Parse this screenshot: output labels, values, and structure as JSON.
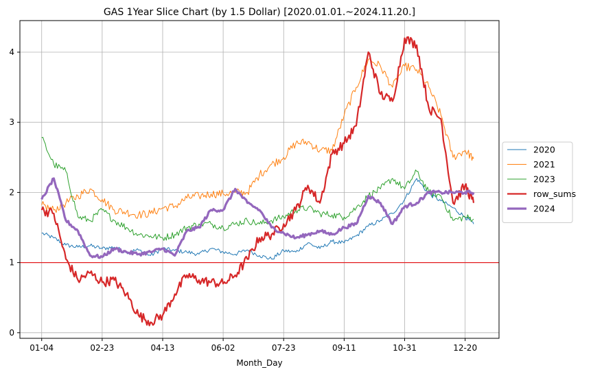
{
  "chart_data": {
    "type": "line",
    "title": "GAS 1Year Slice Chart (by 1.5 Dollar) [2020.01.01.~2024.11.20.]",
    "xlabel": "Month_Day",
    "ylabel": "",
    "x_ticks": [
      {
        "pos": 0,
        "label": "01-04"
      },
      {
        "pos": 50,
        "label": "02-23"
      },
      {
        "pos": 100,
        "label": "04-13"
      },
      {
        "pos": 150,
        "label": "06-02"
      },
      {
        "pos": 200,
        "label": "07-23"
      },
      {
        "pos": 250,
        "label": "09-11"
      },
      {
        "pos": 300,
        "label": "10-31"
      },
      {
        "pos": 350,
        "label": "12-20"
      }
    ],
    "y_ticks": [
      0,
      1,
      2,
      3,
      4
    ],
    "xlim": [
      -18,
      378
    ],
    "ylim": [
      -0.08,
      4.45
    ],
    "grid": true,
    "legend_position": "center-right",
    "reference_line": {
      "y": 1.0,
      "color": "#e31a1c"
    },
    "series": [
      {
        "name": "2020",
        "color": "#1f77b4",
        "width": 1,
        "x": [
          0,
          10,
          20,
          30,
          40,
          50,
          60,
          70,
          80,
          90,
          100,
          110,
          120,
          130,
          140,
          150,
          160,
          170,
          180,
          190,
          200,
          210,
          220,
          230,
          240,
          250,
          260,
          270,
          280,
          290,
          300,
          310,
          320,
          330,
          340,
          350,
          357
        ],
        "values": [
          1.42,
          1.35,
          1.25,
          1.22,
          1.24,
          1.2,
          1.22,
          1.15,
          1.18,
          1.1,
          1.2,
          1.17,
          1.15,
          1.12,
          1.2,
          1.15,
          1.12,
          1.18,
          1.1,
          1.05,
          1.17,
          1.15,
          1.28,
          1.2,
          1.3,
          1.28,
          1.38,
          1.52,
          1.6,
          1.7,
          1.9,
          2.2,
          1.98,
          1.88,
          1.78,
          1.65,
          1.55
        ]
      },
      {
        "name": "2021",
        "color": "#ff7f0e",
        "width": 1,
        "x": [
          0,
          10,
          20,
          30,
          40,
          50,
          60,
          70,
          80,
          90,
          100,
          110,
          120,
          130,
          140,
          150,
          160,
          170,
          180,
          190,
          200,
          210,
          220,
          230,
          240,
          250,
          260,
          270,
          280,
          290,
          300,
          310,
          320,
          330,
          340,
          350,
          357
        ],
        "values": [
          1.82,
          1.75,
          1.85,
          1.95,
          2.05,
          1.9,
          1.75,
          1.72,
          1.68,
          1.7,
          1.78,
          1.8,
          1.92,
          1.95,
          1.98,
          1.98,
          2.0,
          2.0,
          2.25,
          2.4,
          2.5,
          2.7,
          2.72,
          2.6,
          2.6,
          3.1,
          3.5,
          3.9,
          3.8,
          3.5,
          3.8,
          3.75,
          3.5,
          3.1,
          2.5,
          2.6,
          2.48
        ]
      },
      {
        "name": "2023",
        "color": "#2ca02c",
        "width": 1,
        "x": [
          0,
          10,
          20,
          30,
          40,
          50,
          60,
          70,
          80,
          90,
          100,
          110,
          120,
          130,
          140,
          150,
          160,
          170,
          180,
          190,
          200,
          210,
          220,
          230,
          240,
          250,
          260,
          270,
          280,
          290,
          300,
          310,
          320,
          330,
          340,
          350,
          357
        ],
        "values": [
          2.78,
          2.4,
          2.3,
          1.65,
          1.6,
          1.75,
          1.6,
          1.5,
          1.4,
          1.38,
          1.35,
          1.4,
          1.5,
          1.55,
          1.55,
          1.5,
          1.55,
          1.6,
          1.55,
          1.6,
          1.65,
          1.75,
          1.78,
          1.7,
          1.68,
          1.65,
          1.78,
          1.95,
          2.05,
          2.2,
          2.05,
          2.3,
          2.0,
          1.95,
          1.6,
          1.65,
          1.62
        ]
      },
      {
        "name": "row_sums",
        "color": "#d62728",
        "width": 2.2,
        "x": [
          0,
          10,
          20,
          30,
          40,
          50,
          60,
          70,
          80,
          90,
          100,
          110,
          120,
          130,
          140,
          150,
          160,
          170,
          180,
          190,
          200,
          210,
          220,
          230,
          240,
          250,
          260,
          270,
          280,
          290,
          300,
          310,
          320,
          330,
          340,
          350,
          357
        ],
        "values": [
          1.75,
          1.7,
          1.05,
          0.75,
          0.85,
          0.72,
          0.75,
          0.55,
          0.25,
          0.15,
          0.25,
          0.55,
          0.82,
          0.75,
          0.72,
          0.7,
          0.82,
          1.05,
          1.35,
          1.4,
          1.55,
          1.75,
          2.1,
          1.85,
          2.55,
          2.7,
          2.95,
          4.0,
          3.4,
          3.3,
          4.2,
          4.1,
          3.2,
          3.05,
          1.85,
          2.1,
          1.85
        ]
      },
      {
        "name": "2024",
        "color": "#9467bd",
        "width": 3.2,
        "x": [
          0,
          10,
          20,
          30,
          40,
          50,
          60,
          70,
          80,
          90,
          100,
          110,
          120,
          130,
          140,
          150,
          160,
          170,
          180,
          190,
          200,
          210,
          220,
          230,
          240,
          250,
          260,
          270,
          280,
          290,
          300,
          310,
          320,
          330,
          340,
          350,
          357
        ],
        "values": [
          1.9,
          2.2,
          1.6,
          1.45,
          1.1,
          1.08,
          1.2,
          1.15,
          1.12,
          1.15,
          1.2,
          1.1,
          1.45,
          1.5,
          1.75,
          1.75,
          2.05,
          1.85,
          1.75,
          1.5,
          1.42,
          1.35,
          1.4,
          1.45,
          1.4,
          1.5,
          1.55,
          1.95,
          1.85,
          1.55,
          1.8,
          1.85,
          2.0,
          2.0,
          2.0,
          2.0,
          2.0
        ]
      }
    ]
  }
}
